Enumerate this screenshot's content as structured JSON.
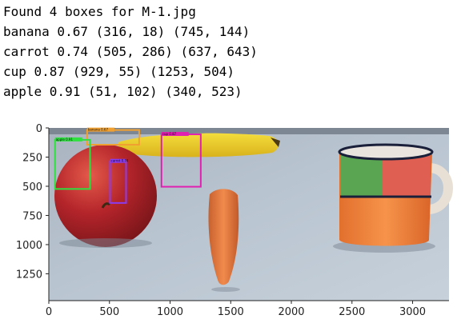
{
  "output_lines": [
    "Found 4 boxes for M-1.jpg",
    "banana 0.67 (316, 18) (745, 144)",
    "carrot 0.74 (505, 286) (637, 643)",
    "cup 0.87 (929, 55) (1253, 504)",
    "apple 0.91 (51, 102) (340, 523)"
  ],
  "chart_data": {
    "type": "image",
    "xlim": [
      0,
      3300
    ],
    "ylim": [
      1480,
      0
    ],
    "x_ticks": [
      0,
      500,
      1000,
      1500,
      2000,
      2500,
      3000
    ],
    "y_ticks": [
      0,
      250,
      500,
      750,
      1000,
      1250
    ],
    "x_tick_labels": [
      "0",
      "500",
      "1000",
      "1500",
      "2000",
      "2500",
      "3000"
    ],
    "y_tick_labels": [
      "0",
      "250",
      "500",
      "750",
      "1000",
      "1250"
    ],
    "boxes": [
      {
        "label": "banana",
        "score": 0.67,
        "x1": 316,
        "y1": 18,
        "x2": 745,
        "y2": 144,
        "color": "#f0a030"
      },
      {
        "label": "carrot",
        "score": 0.74,
        "x1": 505,
        "y1": 286,
        "x2": 637,
        "y2": 643,
        "color": "#8a3cf0"
      },
      {
        "label": "cup",
        "score": 0.87,
        "x1": 929,
        "y1": 55,
        "x2": 1253,
        "y2": 504,
        "color": "#e020b0"
      },
      {
        "label": "apple",
        "score": 0.91,
        "x1": 51,
        "y1": 102,
        "x2": 340,
        "y2": 523,
        "color": "#30e040"
      }
    ]
  }
}
